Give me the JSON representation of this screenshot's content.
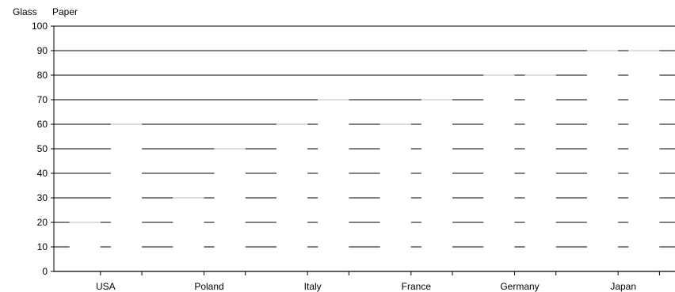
{
  "chart_data": {
    "type": "bar",
    "legend": [
      "Glass",
      "Paper"
    ],
    "categories": [
      "USA",
      "Poland",
      "Italy",
      "France",
      "Germany",
      "Japan"
    ],
    "series": [
      {
        "name": "Glass",
        "values": [
          20,
          30,
          60,
          60,
          80,
          90
        ]
      },
      {
        "name": "Paper",
        "values": [
          60,
          50,
          70,
          70,
          80,
          90
        ]
      }
    ],
    "ylim": [
      0,
      100
    ],
    "yticks": [
      0,
      10,
      20,
      30,
      40,
      50,
      60,
      70,
      80,
      90,
      100
    ],
    "grid": true
  }
}
